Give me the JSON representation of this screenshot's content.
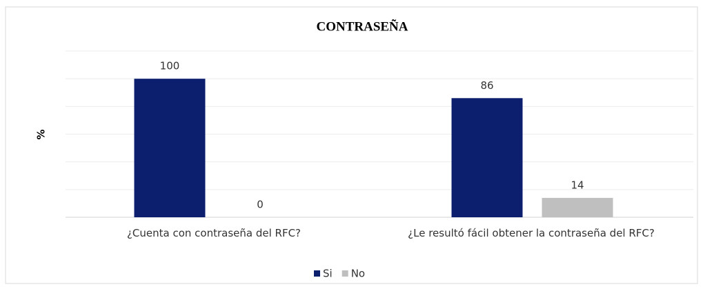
{
  "chart_data": {
    "type": "bar",
    "title": "CONTRASEÑA",
    "y_label": "%",
    "categories": [
      "¿Cuenta con contraseña del RFC?",
      "¿Le resultó fácil obtener la contraseña del RFC?"
    ],
    "series": [
      {
        "name": "Si",
        "color": "#0c1f6e",
        "values": [
          100,
          86
        ]
      },
      {
        "name": "No",
        "color": "#bfbfbf",
        "values": [
          0,
          14
        ]
      }
    ],
    "ylim": [
      0,
      120
    ],
    "yticks": [
      0,
      20,
      40,
      60,
      80,
      100,
      120
    ],
    "grid": true,
    "legend": "bottom"
  }
}
